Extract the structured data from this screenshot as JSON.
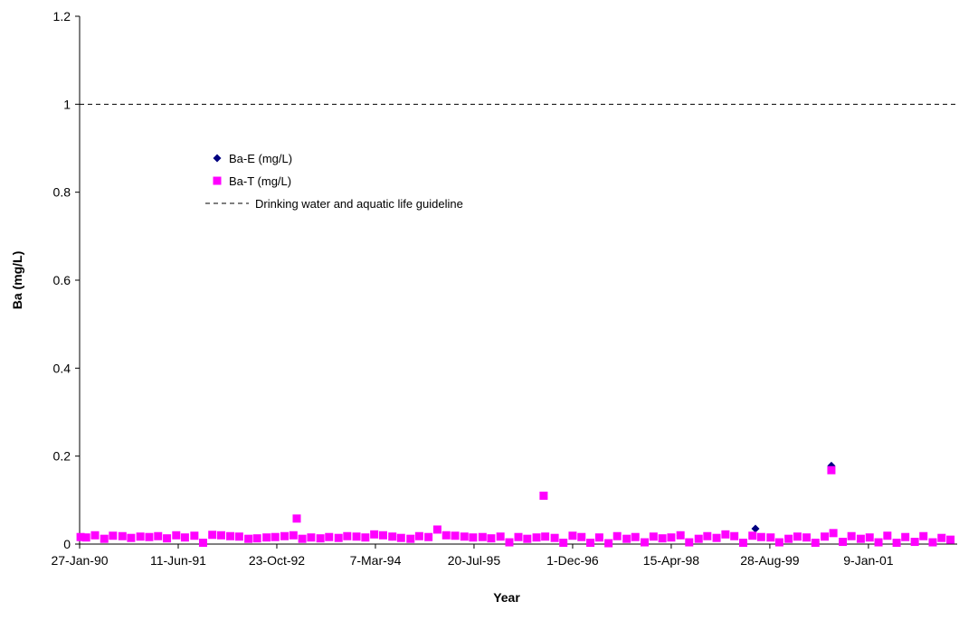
{
  "chart_data": {
    "type": "scatter",
    "x_label": "Year",
    "y_label": "Ba (mg/L)",
    "xlim": [
      "1990-01-27",
      "2002-04-04"
    ],
    "ylim": [
      0,
      1.2
    ],
    "xticks": [
      {
        "value": "1990-01-27",
        "label": "27-Jan-90"
      },
      {
        "value": "1991-06-11",
        "label": "11-Jun-91"
      },
      {
        "value": "1992-10-23",
        "label": "23-Oct-92"
      },
      {
        "value": "1994-03-07",
        "label": "7-Mar-94"
      },
      {
        "value": "1995-07-20",
        "label": "20-Jul-95"
      },
      {
        "value": "1996-12-01",
        "label": "1-Dec-96"
      },
      {
        "value": "1998-04-15",
        "label": "15-Apr-98"
      },
      {
        "value": "1999-08-28",
        "label": "28-Aug-99"
      },
      {
        "value": "2001-01-09",
        "label": "9-Jan-01"
      }
    ],
    "yticks": [
      0,
      0.2,
      0.4,
      0.6,
      0.8,
      1,
      1.2
    ],
    "legend": "upper-left",
    "series": [
      {
        "name": "Ba-E (mg/L)",
        "color": "#000080",
        "marker": "diamond",
        "x": [
          "1994-06-01",
          "1998-06-01",
          "1999-06-16",
          "2000-07-05"
        ],
        "values": [
          0.017,
          0.02,
          0.035,
          0.178
        ]
      },
      {
        "name": "Ba-T (mg/L)",
        "color": "#ff00ff",
        "marker": "square",
        "x": [
          "1990-02-01",
          "1990-03-01",
          "1990-04-15",
          "1990-06-01",
          "1990-07-15",
          "1990-09-01",
          "1990-10-15",
          "1990-12-01",
          "1991-01-15",
          "1991-03-01",
          "1991-04-15",
          "1991-06-01",
          "1991-07-15",
          "1991-09-01",
          "1991-10-15",
          "1991-12-01",
          "1992-01-15",
          "1992-03-01",
          "1992-04-15",
          "1992-06-01",
          "1992-07-15",
          "1992-09-01",
          "1992-10-15",
          "1992-12-01",
          "1993-01-15",
          "1993-02-01",
          "1993-03-01",
          "1993-04-15",
          "1993-06-01",
          "1993-07-15",
          "1993-09-01",
          "1993-10-15",
          "1993-12-01",
          "1994-01-15",
          "1994-03-01",
          "1994-04-15",
          "1994-06-01",
          "1994-07-15",
          "1994-09-01",
          "1994-10-15",
          "1994-12-01",
          "1995-01-15",
          "1995-03-01",
          "1995-04-15",
          "1995-06-01",
          "1995-07-15",
          "1995-09-01",
          "1995-10-15",
          "1995-12-01",
          "1996-01-15",
          "1996-03-01",
          "1996-04-15",
          "1996-06-01",
          "1996-07-07",
          "1996-07-15",
          "1996-09-01",
          "1996-10-15",
          "1996-12-01",
          "1997-01-15",
          "1997-03-01",
          "1997-04-15",
          "1997-06-01",
          "1997-07-15",
          "1997-09-01",
          "1997-10-15",
          "1997-12-01",
          "1998-01-15",
          "1998-03-01",
          "1998-04-15",
          "1998-06-01",
          "1998-07-15",
          "1998-09-01",
          "1998-10-15",
          "1998-12-01",
          "1999-01-15",
          "1999-03-01",
          "1999-04-15",
          "1999-06-01",
          "1999-07-15",
          "1999-09-01",
          "1999-10-15",
          "1999-12-01",
          "2000-01-15",
          "2000-03-01",
          "2000-04-15",
          "2000-06-01",
          "2000-07-05",
          "2000-07-15",
          "2000-09-01",
          "2000-10-15",
          "2000-12-01",
          "2001-01-15",
          "2001-03-01",
          "2001-04-15",
          "2001-06-01",
          "2001-07-15",
          "2001-09-01",
          "2001-10-15",
          "2001-12-01",
          "2002-01-15",
          "2002-03-01"
        ],
        "values": [
          0.016,
          0.015,
          0.02,
          0.012,
          0.019,
          0.018,
          0.014,
          0.017,
          0.016,
          0.018,
          0.013,
          0.02,
          0.015,
          0.019,
          0.003,
          0.021,
          0.02,
          0.018,
          0.017,
          0.012,
          0.013,
          0.015,
          0.016,
          0.018,
          0.02,
          0.058,
          0.012,
          0.015,
          0.013,
          0.016,
          0.014,
          0.018,
          0.017,
          0.015,
          0.022,
          0.02,
          0.017,
          0.014,
          0.012,
          0.018,
          0.016,
          0.033,
          0.02,
          0.019,
          0.017,
          0.015,
          0.016,
          0.013,
          0.017,
          0.004,
          0.016,
          0.012,
          0.015,
          0.11,
          0.017,
          0.014,
          0.003,
          0.019,
          0.016,
          0.003,
          0.015,
          0.002,
          0.018,
          0.012,
          0.016,
          0.004,
          0.017,
          0.013,
          0.015,
          0.02,
          0.004,
          0.012,
          0.018,
          0.014,
          0.022,
          0.018,
          0.003,
          0.019,
          0.016,
          0.015,
          0.004,
          0.012,
          0.017,
          0.015,
          0.003,
          0.017,
          0.168,
          0.025,
          0.005,
          0.018,
          0.012,
          0.015,
          0.004,
          0.019,
          0.003,
          0.016,
          0.005,
          0.018,
          0.004,
          0.014,
          0.01
        ]
      }
    ],
    "guideline": {
      "name": "Drinking water and aquatic life guideline",
      "value": 1,
      "color": "#000000"
    }
  }
}
